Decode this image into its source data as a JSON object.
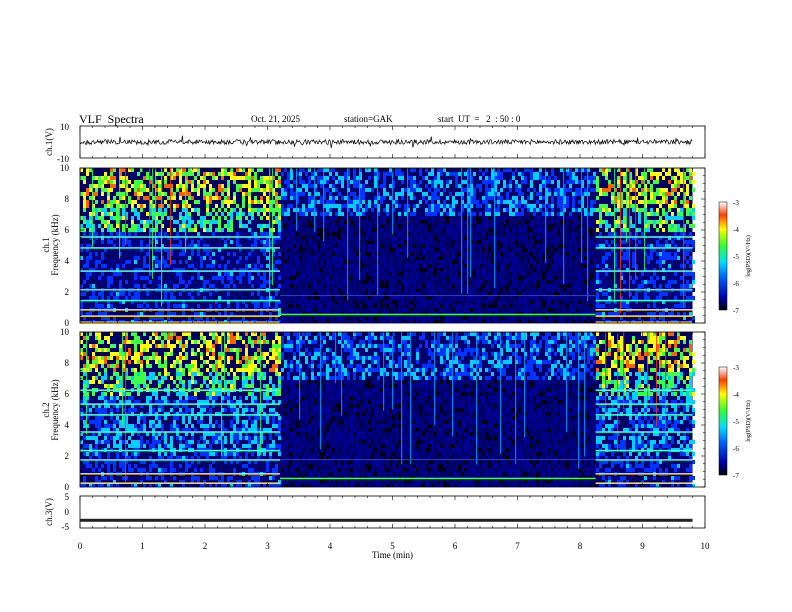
{
  "header": {
    "title": "VLF  Spectra",
    "date": "Oct. 21, 2025",
    "station": "station=GAK",
    "start": "start  UT  =   2  : 50 : 0"
  },
  "chart_data": [
    {
      "type": "line",
      "panel": "ch1-waveform",
      "ylabel": "ch.1(V)",
      "ylim": [
        -10,
        10
      ],
      "yticks": [
        "10",
        "-10"
      ],
      "xlim": [
        0,
        10
      ],
      "note_level": 0
    },
    {
      "type": "heatmap",
      "panel": "ch1-spectrogram",
      "ylabel": "ch.1\nFrequency (kHz)",
      "ylabel_line1": "ch.1",
      "ylabel_line2": "Frequency  (kHz)",
      "ylim": [
        0,
        10
      ],
      "yticks": [
        "0",
        "2",
        "4",
        "6",
        "8",
        "10"
      ],
      "xlim": [
        0,
        10
      ],
      "data_end_min": 9.8,
      "quiet_interval_min": [
        3.2,
        8.25
      ],
      "colorbar": {
        "label": "log(PSD)(V²/Hz)",
        "range": [
          -7,
          -3
        ],
        "ticks": [
          "-3",
          "-4",
          "-5",
          "-6",
          "-7"
        ]
      }
    },
    {
      "type": "heatmap",
      "panel": "ch2-spectrogram",
      "ylabel_line1": "ch.2",
      "ylabel_line2": "Frequency  (kHz)",
      "ylim": [
        0,
        10
      ],
      "yticks": [
        "0",
        "2",
        "4",
        "6",
        "8",
        "10"
      ],
      "xlim": [
        0,
        10
      ],
      "data_end_min": 9.8,
      "quiet_interval_min": [
        3.2,
        8.25
      ],
      "colorbar": {
        "label": "log(PSD)(V²/Hz)",
        "range": [
          -7,
          -3
        ],
        "ticks": [
          "-3",
          "-4",
          "-5",
          "-6",
          "-7"
        ]
      }
    },
    {
      "type": "line",
      "panel": "ch3-waveform",
      "ylabel": "ch.3(V)",
      "ylim": [
        -5,
        5
      ],
      "yticks": [
        "5",
        "0",
        "-5"
      ],
      "xlim": [
        0,
        10
      ],
      "level": -2.6,
      "xticks": [
        "0",
        "1",
        "2",
        "3",
        "4",
        "5",
        "6",
        "7",
        "8",
        "9",
        "10"
      ],
      "xlabel": "Time  (min)"
    }
  ],
  "colors": {
    "background": "#000033",
    "colormap": [
      "#000018",
      "#00008f",
      "#0033ff",
      "#00cfff",
      "#40ff40",
      "#ffff00",
      "#ff6000",
      "#c00000"
    ]
  }
}
